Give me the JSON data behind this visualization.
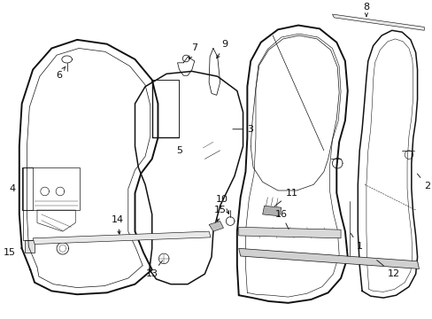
{
  "bg_color": "#ffffff",
  "line_color": "#111111",
  "text_color": "#111111",
  "lw_main": 1.1,
  "lw_inner": 0.55,
  "lw_label": 0.65
}
